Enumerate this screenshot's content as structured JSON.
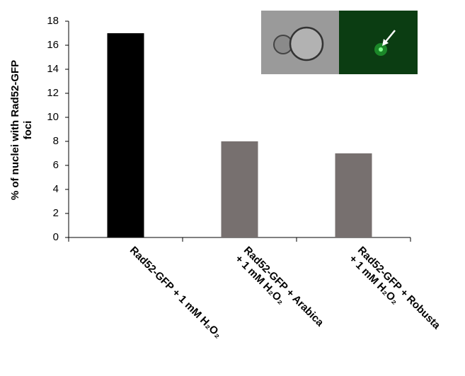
{
  "chart_data": {
    "type": "bar",
    "ylabel": [
      "% of nuclei with Rad52-GFP",
      "foci"
    ],
    "categories": [
      [
        "Rad52-GFP + 1 mM H₂O₂"
      ],
      [
        "Rad52-GFP + Arabica",
        "+ 1 mM H₂O₂"
      ],
      [
        "Rad52-GFP + Robusta",
        "+ 1 mM H₂O₂"
      ]
    ],
    "values": [
      17,
      8,
      7
    ],
    "colors": [
      "#000000",
      "#77706f",
      "#77706f"
    ],
    "ylim": [
      0,
      18
    ],
    "yticks": [
      0,
      2,
      4,
      6,
      8,
      10,
      12,
      14,
      16,
      18
    ],
    "grid": false
  }
}
